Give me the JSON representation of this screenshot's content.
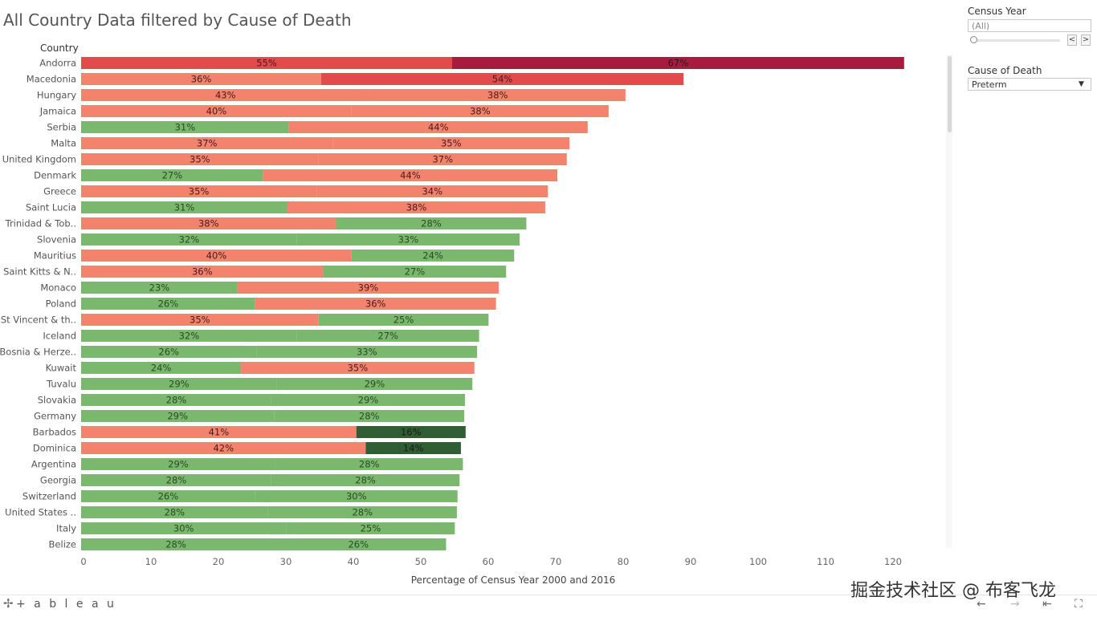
{
  "header": {
    "title": "All Country Data filtered by Cause of Death",
    "column_header": "Country"
  },
  "filters": {
    "census_year": {
      "title": "Census Year",
      "value": "(All)",
      "prev": "<",
      "next": ">"
    },
    "cause_of_death": {
      "title": "Cause of Death",
      "value": "Preterm"
    }
  },
  "footer": {
    "logo": "+ a b l e a u",
    "watermark": "掘金技术社区 @ 布客飞龙"
  },
  "colors": {
    "green": "#7ab86d",
    "salmon": "#f4836e",
    "red": "#e24a4c",
    "crimson": "#a91b3e",
    "dark_green": "#2e5e32"
  },
  "chart_data": {
    "type": "bar",
    "orientation": "horizontal",
    "stacked": true,
    "title": "All Country Data filtered by Cause of Death",
    "xlabel": "Percentage of Census Year 2000 and  2016",
    "ylabel": "Country",
    "xlim": [
      0,
      125
    ],
    "xticks": [
      0,
      10,
      20,
      30,
      40,
      50,
      60,
      70,
      80,
      90,
      100,
      110,
      120
    ],
    "grid": false,
    "rows": [
      {
        "country": "Andorra",
        "segments": [
          {
            "value": 55,
            "label": "55%",
            "color": "red"
          },
          {
            "value": 67,
            "label": "67%",
            "color": "crimson"
          }
        ]
      },
      {
        "country": "Macedonia",
        "segments": [
          {
            "value": 35.6,
            "label": "36%",
            "color": "salmon"
          },
          {
            "value": 53.7,
            "label": "54%",
            "color": "red"
          }
        ]
      },
      {
        "country": "Hungary",
        "segments": [
          {
            "value": 42.8,
            "label": "43%",
            "color": "salmon"
          },
          {
            "value": 37.9,
            "label": "38%",
            "color": "salmon"
          }
        ]
      },
      {
        "country": "Jamaica",
        "segments": [
          {
            "value": 40.1,
            "label": "40%",
            "color": "salmon"
          },
          {
            "value": 38.1,
            "label": "38%",
            "color": "salmon"
          }
        ]
      },
      {
        "country": "Serbia",
        "segments": [
          {
            "value": 30.8,
            "label": "31%",
            "color": "green"
          },
          {
            "value": 44.3,
            "label": "44%",
            "color": "salmon"
          }
        ]
      },
      {
        "country": "Malta",
        "segments": [
          {
            "value": 37.3,
            "label": "37%",
            "color": "salmon"
          },
          {
            "value": 35.1,
            "label": "35%",
            "color": "salmon"
          }
        ]
      },
      {
        "country": "United Kingdom",
        "segments": [
          {
            "value": 35.2,
            "label": "35%",
            "color": "salmon"
          },
          {
            "value": 36.8,
            "label": "37%",
            "color": "salmon"
          }
        ]
      },
      {
        "country": "Denmark",
        "segments": [
          {
            "value": 27,
            "label": "27%",
            "color": "green"
          },
          {
            "value": 43.6,
            "label": "44%",
            "color": "salmon"
          }
        ]
      },
      {
        "country": "Greece",
        "segments": [
          {
            "value": 34.9,
            "label": "35%",
            "color": "salmon"
          },
          {
            "value": 34.3,
            "label": "34%",
            "color": "salmon"
          }
        ]
      },
      {
        "country": "Saint Lucia",
        "segments": [
          {
            "value": 30.6,
            "label": "31%",
            "color": "green"
          },
          {
            "value": 38.2,
            "label": "38%",
            "color": "salmon"
          }
        ]
      },
      {
        "country": "Trinidad & Tob..",
        "segments": [
          {
            "value": 37.8,
            "label": "38%",
            "color": "salmon"
          },
          {
            "value": 28.2,
            "label": "28%",
            "color": "green"
          }
        ]
      },
      {
        "country": "Slovenia",
        "segments": [
          {
            "value": 32,
            "label": "32%",
            "color": "green"
          },
          {
            "value": 33,
            "label": "33%",
            "color": "green"
          }
        ]
      },
      {
        "country": "Mauritius",
        "segments": [
          {
            "value": 40.1,
            "label": "40%",
            "color": "salmon"
          },
          {
            "value": 24.1,
            "label": "24%",
            "color": "green"
          }
        ]
      },
      {
        "country": "Saint Kitts & N..",
        "segments": [
          {
            "value": 35.9,
            "label": "36%",
            "color": "salmon"
          },
          {
            "value": 27.1,
            "label": "27%",
            "color": "green"
          }
        ]
      },
      {
        "country": "Monaco",
        "segments": [
          {
            "value": 23.2,
            "label": "23%",
            "color": "green"
          },
          {
            "value": 38.7,
            "label": "39%",
            "color": "salmon"
          }
        ]
      },
      {
        "country": "Poland",
        "segments": [
          {
            "value": 25.8,
            "label": "26%",
            "color": "green"
          },
          {
            "value": 35.7,
            "label": "36%",
            "color": "salmon"
          }
        ]
      },
      {
        "country": "St Vincent & th..",
        "segments": [
          {
            "value": 35.2,
            "label": "35%",
            "color": "salmon"
          },
          {
            "value": 25.2,
            "label": "25%",
            "color": "green"
          }
        ]
      },
      {
        "country": "Iceland",
        "segments": [
          {
            "value": 32,
            "label": "32%",
            "color": "green"
          },
          {
            "value": 27,
            "label": "27%",
            "color": "green"
          }
        ]
      },
      {
        "country": "Bosnia & Herze..",
        "segments": [
          {
            "value": 26,
            "label": "26%",
            "color": "green"
          },
          {
            "value": 32.7,
            "label": "33%",
            "color": "green"
          }
        ]
      },
      {
        "country": "Kuwait",
        "segments": [
          {
            "value": 23.7,
            "label": "24%",
            "color": "green"
          },
          {
            "value": 34.6,
            "label": "35%",
            "color": "salmon"
          }
        ]
      },
      {
        "country": "Tuvalu",
        "segments": [
          {
            "value": 29,
            "label": "29%",
            "color": "green"
          },
          {
            "value": 29,
            "label": "29%",
            "color": "green"
          }
        ]
      },
      {
        "country": "Slovakia",
        "segments": [
          {
            "value": 28.2,
            "label": "28%",
            "color": "green"
          },
          {
            "value": 28.7,
            "label": "29%",
            "color": "green"
          }
        ]
      },
      {
        "country": "Germany",
        "segments": [
          {
            "value": 28.6,
            "label": "29%",
            "color": "green"
          },
          {
            "value": 28.2,
            "label": "28%",
            "color": "green"
          }
        ]
      },
      {
        "country": "Barbados",
        "segments": [
          {
            "value": 40.8,
            "label": "41%",
            "color": "salmon"
          },
          {
            "value": 16.2,
            "label": "16%",
            "color": "dark_green"
          }
        ]
      },
      {
        "country": "Dominica",
        "segments": [
          {
            "value": 42.2,
            "label": "42%",
            "color": "salmon"
          },
          {
            "value": 14.1,
            "label": "14%",
            "color": "dark_green"
          }
        ]
      },
      {
        "country": "Argentina",
        "segments": [
          {
            "value": 28.8,
            "label": "29%",
            "color": "green"
          },
          {
            "value": 27.8,
            "label": "28%",
            "color": "green"
          }
        ]
      },
      {
        "country": "Georgia",
        "segments": [
          {
            "value": 28.2,
            "label": "28%",
            "color": "green"
          },
          {
            "value": 27.9,
            "label": "28%",
            "color": "green"
          }
        ]
      },
      {
        "country": "Switzerland",
        "segments": [
          {
            "value": 25.8,
            "label": "26%",
            "color": "green"
          },
          {
            "value": 30,
            "label": "30%",
            "color": "green"
          }
        ]
      },
      {
        "country": "United States ..",
        "segments": [
          {
            "value": 27.7,
            "label": "28%",
            "color": "green"
          },
          {
            "value": 28,
            "label": "28%",
            "color": "green"
          }
        ]
      },
      {
        "country": "Italy",
        "segments": [
          {
            "value": 30.4,
            "label": "30%",
            "color": "green"
          },
          {
            "value": 25,
            "label": "25%",
            "color": "green"
          }
        ]
      },
      {
        "country": "Belize",
        "segments": [
          {
            "value": 28.1,
            "label": "28%",
            "color": "green"
          },
          {
            "value": 26,
            "label": "26%",
            "color": "green"
          }
        ]
      }
    ]
  }
}
